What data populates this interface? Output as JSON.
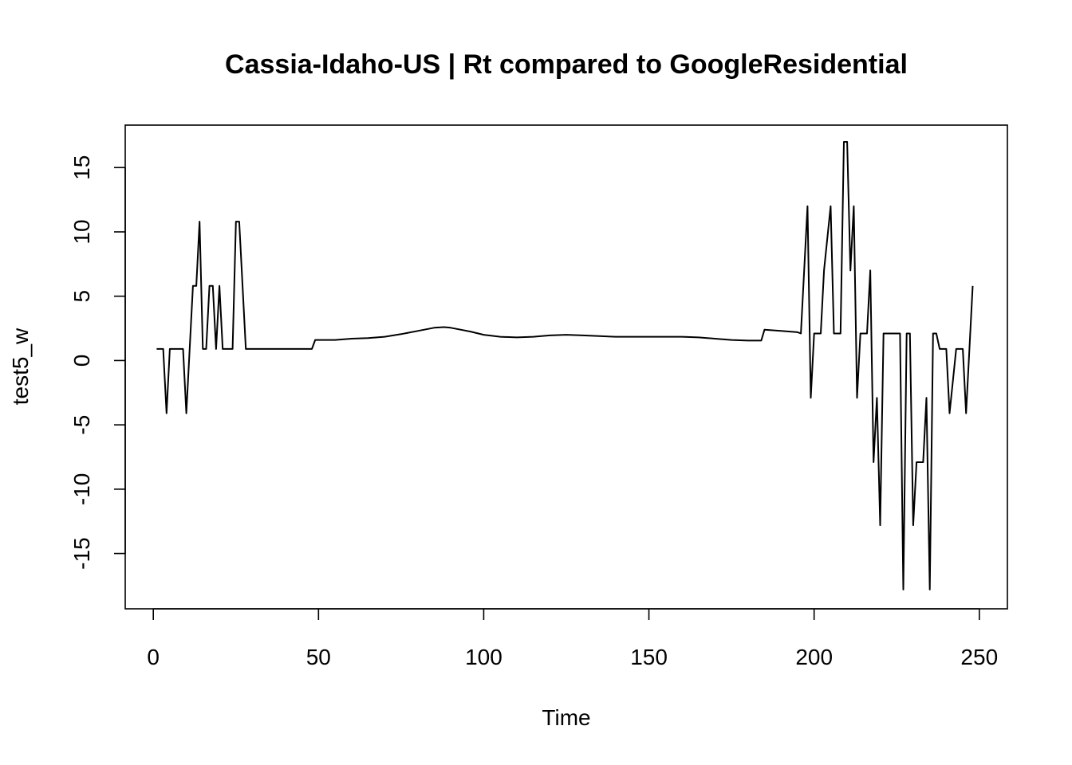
{
  "chart_data": {
    "type": "line",
    "title": "Cassia-Idaho-US | Rt compared to GoogleResidential",
    "xlabel": "Time",
    "ylabel": "test5_w",
    "xlim": [
      -8.5,
      258.5
    ],
    "ylim": [
      -19.3,
      18.3
    ],
    "xticks": [
      0,
      50,
      100,
      150,
      200,
      250
    ],
    "yticks": [
      -15,
      -10,
      -5,
      0,
      5,
      10,
      15
    ],
    "grid": false,
    "legend": "none",
    "series": [
      {
        "color": "#000000",
        "x": [
          1,
          3,
          4,
          5,
          9,
          10,
          12,
          13,
          14,
          15,
          16,
          17,
          18,
          19,
          20,
          21,
          22,
          23,
          24,
          25,
          26,
          27,
          28,
          35,
          40,
          45,
          48,
          49,
          55,
          60,
          65,
          70,
          75,
          80,
          85,
          88,
          90,
          93,
          96,
          100,
          105,
          110,
          115,
          120,
          125,
          130,
          135,
          140,
          145,
          150,
          155,
          160,
          165,
          170,
          175,
          180,
          184,
          185,
          190,
          195,
          196,
          198,
          199,
          200,
          202,
          203,
          205,
          206,
          208,
          209,
          210,
          211,
          212,
          213,
          214,
          216,
          217,
          218,
          219,
          220,
          221,
          223,
          225,
          226,
          227,
          228,
          229,
          230,
          231,
          232,
          233,
          234,
          235,
          236,
          237,
          238,
          239,
          240,
          241,
          243,
          245,
          246,
          248
        ],
        "values": [
          0.9,
          0.9,
          -4.1,
          0.9,
          0.9,
          -4.1,
          5.8,
          5.8,
          10.8,
          0.9,
          0.9,
          5.8,
          5.8,
          0.9,
          5.8,
          0.9,
          0.9,
          0.9,
          0.9,
          10.8,
          10.8,
          5.8,
          0.9,
          0.9,
          0.9,
          0.9,
          0.9,
          1.6,
          1.6,
          1.7,
          1.75,
          1.85,
          2.05,
          2.3,
          2.55,
          2.6,
          2.55,
          2.4,
          2.25,
          2.0,
          1.85,
          1.8,
          1.85,
          1.95,
          2.0,
          1.95,
          1.9,
          1.85,
          1.85,
          1.85,
          1.85,
          1.85,
          1.8,
          1.7,
          1.6,
          1.55,
          1.55,
          2.4,
          2.3,
          2.2,
          2.1,
          12.0,
          -2.9,
          2.1,
          2.1,
          7.0,
          12.0,
          2.1,
          2.1,
          17.0,
          17.0,
          7.0,
          12.0,
          -2.9,
          2.1,
          2.1,
          7.0,
          -7.9,
          -2.9,
          -12.8,
          2.1,
          2.1,
          2.1,
          2.1,
          -17.8,
          2.1,
          2.1,
          -12.8,
          -7.9,
          -7.9,
          -7.9,
          -2.9,
          -17.8,
          2.1,
          2.1,
          0.9,
          0.9,
          0.9,
          -4.1,
          0.9,
          0.9,
          -4.1,
          5.8
        ]
      }
    ]
  }
}
